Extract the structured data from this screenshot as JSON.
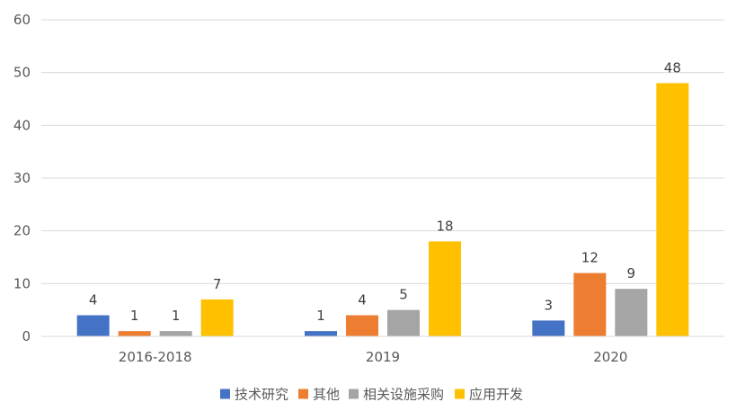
{
  "chart_data": {
    "type": "bar",
    "title": "",
    "xlabel": "",
    "ylabel": "",
    "categories": [
      "2016-2018",
      "2019",
      "2020"
    ],
    "series": [
      {
        "name": "技术研究",
        "values": [
          4,
          1,
          3
        ],
        "color": "#4472C4"
      },
      {
        "name": "其他",
        "values": [
          1,
          4,
          12
        ],
        "color": "#ED7D31"
      },
      {
        "name": "相关设施采购",
        "values": [
          1,
          5,
          9
        ],
        "color": "#A5A5A5"
      },
      {
        "name": "应用开发",
        "values": [
          7,
          18,
          48
        ],
        "color": "#FFC000"
      }
    ],
    "ylim": [
      0,
      60
    ],
    "yticks": [
      0,
      10,
      20,
      30,
      40,
      50,
      60
    ],
    "grid": true,
    "legend": "bottom",
    "data_labels": true
  }
}
